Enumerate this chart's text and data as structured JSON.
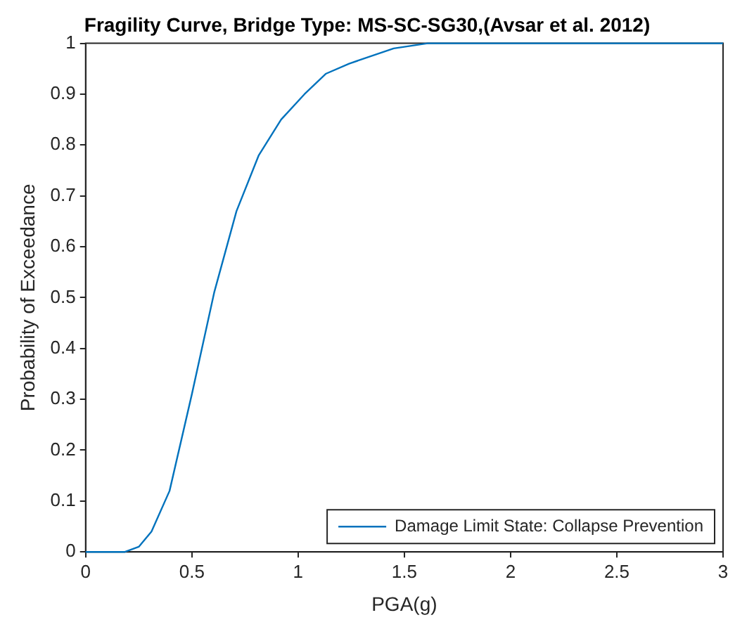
{
  "chart_data": {
    "type": "line",
    "title": "Fragility Curve, Bridge Type: MS-SC-SG30,(Avsar et al. 2012)",
    "xlabel": "PGA(g)",
    "ylabel": "Probability of Exceedance",
    "series": [
      {
        "name": "Damage Limit State: Collapse Prevention",
        "color": "#0072bd",
        "x": [
          0,
          0.185,
          0.25,
          0.31,
          0.395,
          0.5,
          0.605,
          0.71,
          0.815,
          0.92,
          1.03,
          1.13,
          1.24,
          1.45,
          1.61,
          2.0,
          3.0
        ],
        "values": [
          0,
          0,
          0.01,
          0.04,
          0.12,
          0.31,
          0.51,
          0.67,
          0.78,
          0.85,
          0.9,
          0.94,
          0.96,
          0.99,
          1.0,
          1.0,
          1.0
        ]
      }
    ],
    "xlim": [
      0,
      3
    ],
    "xticks": [
      0,
      0.5,
      1,
      1.5,
      2,
      2.5,
      3
    ],
    "ylim": [
      0,
      1
    ],
    "yticks": [
      0,
      0.1,
      0.2,
      0.3,
      0.4,
      0.5,
      0.6,
      0.7,
      0.8,
      0.9,
      1
    ],
    "grid": false,
    "legend": "bottom right",
    "marker": "none",
    "line_style": "solid"
  }
}
